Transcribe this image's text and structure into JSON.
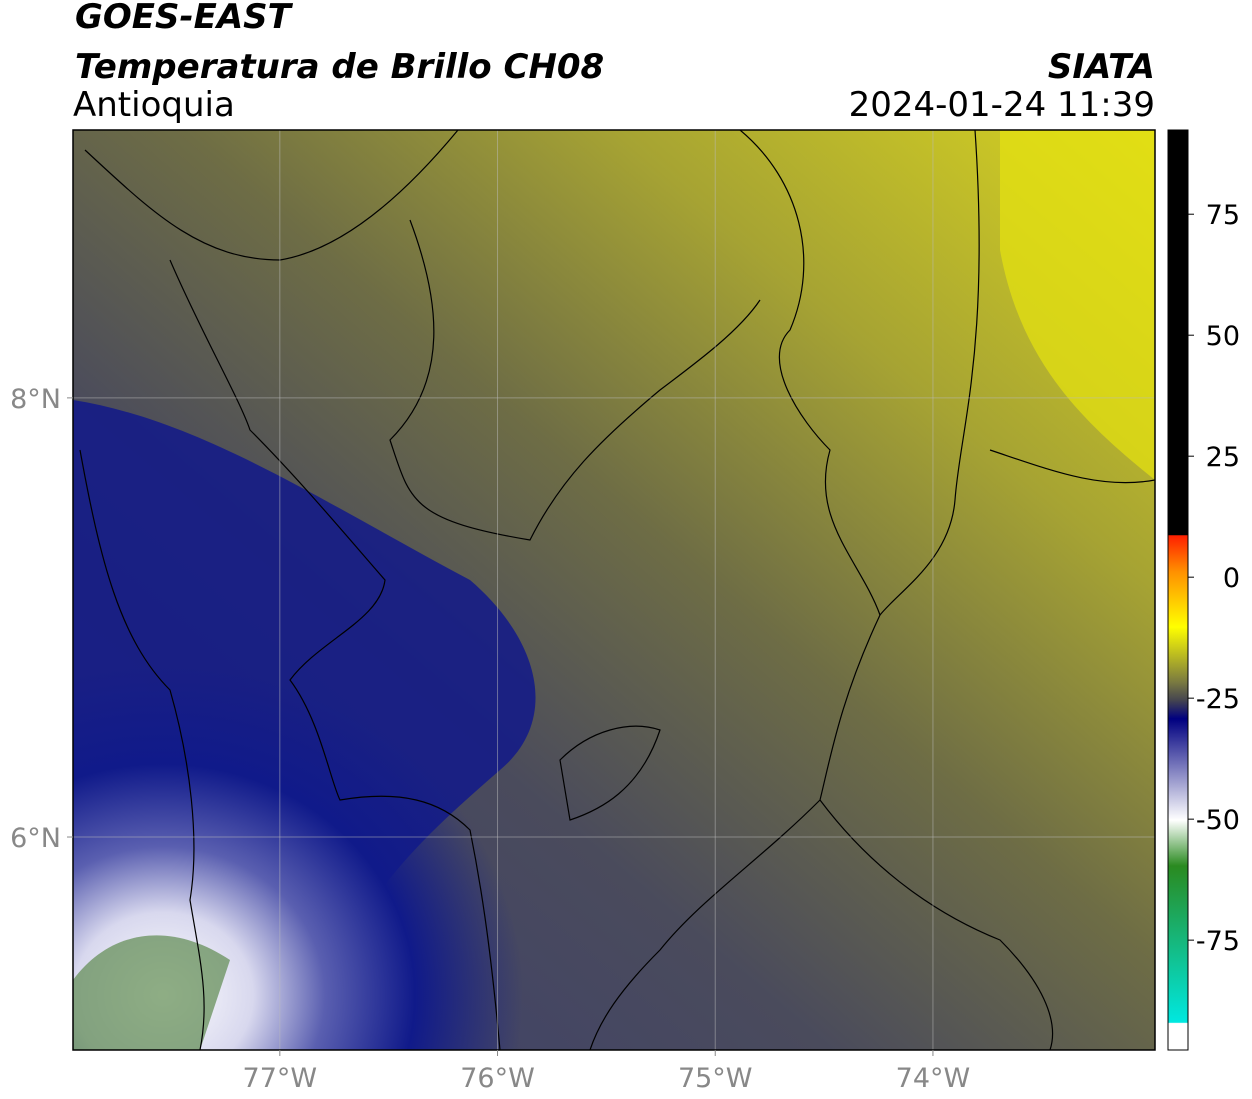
{
  "header": {
    "title": "GOES-EAST",
    "subtitle": "Temperatura de Brillo CH08",
    "region": "Antioquia",
    "source": "SIATA",
    "datetime": "2024-01-24 11:39"
  },
  "map": {
    "xlim": [
      -77.95,
      -72.98
    ],
    "ylim": [
      5.03,
      9.22
    ],
    "xticks": [
      {
        "value": -77,
        "label": "77°W"
      },
      {
        "value": -76,
        "label": "76°W"
      },
      {
        "value": -75,
        "label": "75°W"
      },
      {
        "value": -74,
        "label": "74°W"
      }
    ],
    "yticks": [
      {
        "value": 8,
        "label": "8°N"
      },
      {
        "value": 6,
        "label": "6°N"
      }
    ],
    "grid": true
  },
  "colorbar": {
    "lim": [
      -97.7,
      92.4
    ],
    "ticks": [
      75,
      50,
      25,
      0,
      -25,
      -50,
      -75
    ]
  }
}
